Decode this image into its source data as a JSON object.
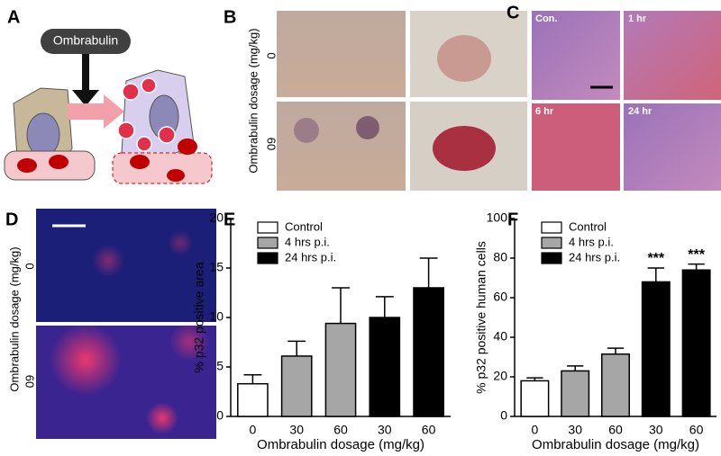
{
  "panel_labels": [
    "A",
    "B",
    "C",
    "D"
  ],
  "panel_a": {
    "drug": "Ombrabulin"
  },
  "panel_b": {
    "axis_label": "Ombrabulin dosage (mg/kg)",
    "rows": [
      "0",
      "60"
    ]
  },
  "panel_c": {
    "labels": [
      "Con.",
      "1 hr",
      "6 hr",
      "24 hr"
    ]
  },
  "panel_d": {
    "axis_label": "Ombrabulin dosage (mg/kg)",
    "rows": [
      "0",
      "60"
    ]
  },
  "chart_data": [
    {
      "type": "bar",
      "label": "E",
      "ylabel": "% p32 positive area",
      "xlabel": "Ombrabulin dosage (mg/kg)",
      "categories": [
        "0",
        "30",
        "60",
        "30",
        "60"
      ],
      "series": [
        {
          "name": "Control",
          "color": "#ffffff",
          "values": [
            3.3,
            null,
            null,
            null,
            null
          ],
          "errors": [
            0.9,
            null,
            null,
            null,
            null
          ]
        },
        {
          "name": "4 hrs p.i.",
          "color": "#a6a6a6",
          "values": [
            null,
            6.1,
            9.4,
            null,
            null
          ],
          "errors": [
            null,
            1.5,
            3.6,
            null,
            null
          ]
        },
        {
          "name": "24 hrs p.i.",
          "color": "#000000",
          "values": [
            null,
            null,
            null,
            10,
            13
          ],
          "errors": [
            null,
            null,
            null,
            2.1,
            3
          ]
        }
      ],
      "ylim": [
        0,
        20
      ],
      "yticks": [
        0,
        5,
        10,
        15,
        20
      ],
      "legend": "upper left"
    },
    {
      "type": "bar",
      "label": "F",
      "ylabel": "% p32 positive human cells",
      "xlabel": "Ombrabulin dosage (mg/kg)",
      "categories": [
        "0",
        "30",
        "60",
        "30",
        "60"
      ],
      "series": [
        {
          "name": "Control",
          "color": "#ffffff",
          "values": [
            18,
            null,
            null,
            null,
            null
          ],
          "errors": [
            1.5,
            null,
            null,
            null,
            null
          ]
        },
        {
          "name": "4 hrs p.i.",
          "color": "#a6a6a6",
          "values": [
            null,
            23,
            31.5,
            null,
            null
          ],
          "errors": [
            null,
            2.5,
            3,
            null,
            null
          ]
        },
        {
          "name": "24 hrs p.i.",
          "color": "#000000",
          "values": [
            null,
            null,
            null,
            68,
            74
          ],
          "errors": [
            null,
            null,
            null,
            7,
            3
          ],
          "annotations": [
            null,
            null,
            null,
            "***",
            "***"
          ]
        }
      ],
      "ylim": [
        0,
        100
      ],
      "yticks": [
        0,
        20,
        40,
        60,
        80,
        100
      ],
      "legend": "upper left"
    }
  ]
}
